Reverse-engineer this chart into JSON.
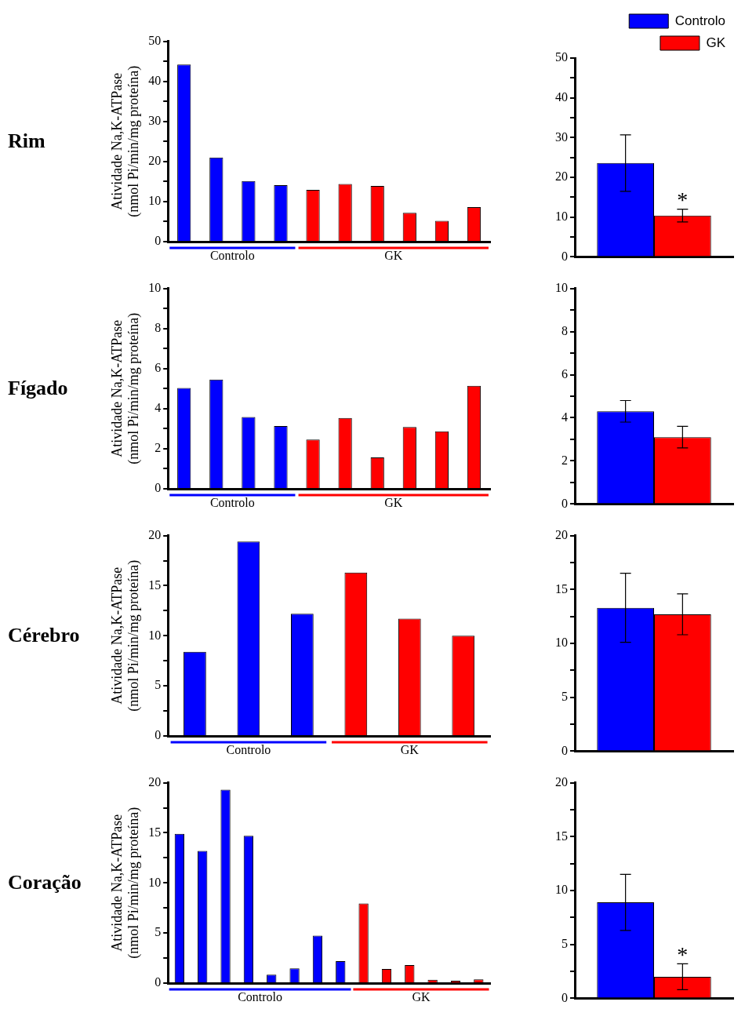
{
  "chart_data": [
    {
      "type": "bar",
      "title": "Rim",
      "ylabel": "Atividade Na,K-ATPase\n(nmol Pi/min/mg proteína)",
      "categories": [
        null,
        null,
        null,
        null,
        null,
        null,
        null,
        null,
        null,
        null
      ],
      "series": [
        {
          "name": "Controlo",
          "color": "#0000ff",
          "values": [
            44.2,
            21.0,
            15.1,
            14.1,
            null,
            null,
            null,
            null,
            null,
            null
          ]
        },
        {
          "name": "GK",
          "color": "#ff0000",
          "values": [
            null,
            null,
            null,
            null,
            12.9,
            14.4,
            13.9,
            7.2,
            5.2,
            8.6
          ]
        }
      ],
      "ylim": [
        0,
        50
      ],
      "yticks": [
        0,
        {
          "value": 5,
          "label": null
        },
        10,
        {
          "value": 15,
          "label": null
        },
        20,
        {
          "value": 25,
          "label": null
        },
        30,
        {
          "value": 35,
          "label": null
        },
        40,
        {
          "value": 45,
          "label": null
        },
        50
      ],
      "grid": false,
      "tick_labels": "y"
    },
    {
      "type": "bar",
      "categories": [
        null
      ],
      "series": [
        {
          "name": "Controlo",
          "color": "#0000ff",
          "values": [
            23.6
          ],
          "errors": [
            7.1
          ]
        },
        {
          "name": "GK",
          "color": "#ff0000",
          "values": [
            10.4
          ],
          "errors": [
            1.6
          ]
        }
      ],
      "ylim": [
        0,
        50
      ],
      "yticks": [
        0,
        {
          "value": 5,
          "label": null
        },
        10,
        {
          "value": 15,
          "label": null
        },
        20,
        {
          "value": 25,
          "label": null
        },
        30,
        {
          "value": 35,
          "label": null
        },
        40,
        {
          "value": 45,
          "label": null
        },
        50
      ],
      "grid": false,
      "tick_labels": "y",
      "legend": "top right",
      "annotations": [
        "*"
      ]
    },
    {
      "type": "bar",
      "title": "Fígado",
      "ylabel": "Atividade Na,K-ATPase\n(nmol Pi/min/mg proteína)",
      "categories": [
        null,
        null,
        null,
        null,
        null,
        null,
        null,
        null,
        null,
        null
      ],
      "series": [
        {
          "name": "Controlo",
          "color": "#0000ff",
          "values": [
            5.03,
            5.45,
            3.58,
            3.13,
            null,
            null,
            null,
            null,
            null,
            null
          ]
        },
        {
          "name": "GK",
          "color": "#ff0000",
          "values": [
            null,
            null,
            null,
            null,
            2.46,
            3.53,
            1.57,
            3.08,
            2.87,
            5.14
          ]
        }
      ],
      "ylim": [
        0,
        10
      ],
      "yticks": [
        0,
        {
          "value": 1,
          "label": null
        },
        2,
        {
          "value": 3,
          "label": null
        },
        4,
        {
          "value": 5,
          "label": null
        },
        6,
        {
          "value": 7,
          "label": null
        },
        8,
        {
          "value": 9,
          "label": null
        },
        10
      ],
      "grid": false,
      "tick_labels": "y"
    },
    {
      "type": "bar",
      "categories": [
        null
      ],
      "series": [
        {
          "color": "#0000ff",
          "values": [
            4.3
          ],
          "errors": [
            0.5
          ]
        },
        {
          "color": "#ff0000",
          "values": [
            3.1
          ],
          "errors": [
            0.5
          ]
        }
      ],
      "ylim": [
        0,
        10
      ],
      "yticks": [
        0,
        {
          "value": 1,
          "label": null
        },
        2,
        {
          "value": 3,
          "label": null
        },
        4,
        {
          "value": 5,
          "label": null
        },
        6,
        {
          "value": 7,
          "label": null
        },
        8,
        {
          "value": 9,
          "label": null
        },
        10
      ],
      "grid": false,
      "tick_labels": "y"
    },
    {
      "type": "bar",
      "title": "Cérebro",
      "ylabel": "Atividade Na,K-ATPase\n(nmol Pi/min/mg proteína)",
      "categories": [
        null,
        null,
        null,
        null,
        null,
        null
      ],
      "series": [
        {
          "name": "Controlo",
          "color": "#0000ff",
          "values": [
            8.4,
            19.4,
            12.2,
            null,
            null,
            null
          ]
        },
        {
          "name": "GK",
          "color": "#ff0000",
          "values": [
            null,
            null,
            null,
            16.3,
            11.7,
            10.0
          ]
        }
      ],
      "ylim": [
        0,
        20
      ],
      "yticks": [
        0,
        {
          "value": 2.5,
          "label": null
        },
        5,
        {
          "value": 7.5,
          "label": null
        },
        10,
        {
          "value": 12.5,
          "label": null
        },
        15,
        {
          "value": 17.5,
          "label": null
        },
        20
      ],
      "grid": false,
      "tick_labels": "y"
    },
    {
      "type": "bar",
      "categories": [
        null
      ],
      "series": [
        {
          "color": "#0000ff",
          "values": [
            13.3
          ],
          "errors": [
            3.2
          ]
        },
        {
          "color": "#ff0000",
          "values": [
            12.7
          ],
          "errors": [
            1.9
          ]
        }
      ],
      "ylim": [
        0,
        20
      ],
      "yticks": [
        0,
        {
          "value": 2.5,
          "label": null
        },
        5,
        {
          "value": 7.5,
          "label": null
        },
        10,
        {
          "value": 12.5,
          "label": null
        },
        15,
        {
          "value": 17.5,
          "label": null
        },
        20
      ],
      "grid": false,
      "tick_labels": "y"
    },
    {
      "type": "bar",
      "title": "Coração",
      "ylabel": "Atividade Na,K-ATPase\n(nmol Pi/min/mg proteína)",
      "categories": [
        null,
        null,
        null,
        null,
        null,
        null,
        null,
        null,
        null,
        null,
        null,
        null,
        null,
        null
      ],
      "series": [
        {
          "name": "Controlo",
          "color": "#0000ff",
          "values": [
            14.9,
            13.2,
            19.3,
            14.7,
            0.85,
            1.47,
            4.74,
            2.2,
            null,
            null,
            null,
            null,
            null,
            null
          ]
        },
        {
          "name": "GK",
          "color": "#ff0000",
          "values": [
            null,
            null,
            null,
            null,
            null,
            null,
            null,
            null,
            7.95,
            1.41,
            1.8,
            0.34,
            0.23,
            0.37
          ]
        }
      ],
      "ylim": [
        0,
        20
      ],
      "yticks": [
        0,
        {
          "value": 2.5,
          "label": null
        },
        5,
        {
          "value": 7.5,
          "label": null
        },
        10,
        {
          "value": 12.5,
          "label": null
        },
        15,
        {
          "value": 17.5,
          "label": null
        },
        20
      ],
      "grid": false,
      "tick_labels": "y"
    },
    {
      "type": "bar",
      "categories": [
        null
      ],
      "series": [
        {
          "color": "#0000ff",
          "values": [
            8.9
          ],
          "errors": [
            2.6
          ]
        },
        {
          "color": "#ff0000",
          "values": [
            2.0
          ],
          "errors": [
            1.2
          ]
        }
      ],
      "ylim": [
        0,
        20
      ],
      "yticks": [
        0,
        {
          "value": 2.5,
          "label": null
        },
        5,
        {
          "value": 7.5,
          "label": null
        },
        10,
        {
          "value": 12.5,
          "label": null
        },
        15,
        {
          "value": 17.5,
          "label": null
        },
        20
      ],
      "grid": false,
      "tick_labels": "y",
      "annotations": [
        "*"
      ]
    }
  ]
}
